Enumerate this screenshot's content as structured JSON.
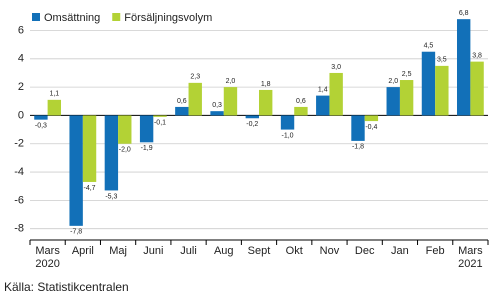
{
  "chart_data": {
    "type": "bar",
    "categories": [
      "Mars 2020",
      "April",
      "Maj",
      "Juni",
      "Juli",
      "Aug",
      "Sept",
      "Okt",
      "Nov",
      "Dec",
      "Jan",
      "Feb",
      "Mars 2021"
    ],
    "series": [
      {
        "name": "Omsättning",
        "color": "#1270b8",
        "values": [
          -0.3,
          -7.8,
          -5.3,
          -1.9,
          0.6,
          0.3,
          -0.2,
          -1.0,
          1.4,
          -1.8,
          2.0,
          4.5,
          6.8
        ],
        "value_labels": [
          "-0,3",
          "-7,8",
          "-5,3",
          "-1,9",
          "0,6",
          "0,3",
          "-0,2",
          "-1,0",
          "1,4",
          "-1,8",
          "2,0",
          "4,5",
          "6,8"
        ]
      },
      {
        "name": "Försäljningsvolym",
        "color": "#b3d235",
        "values": [
          1.1,
          -4.7,
          -2.0,
          -0.1,
          2.3,
          2.0,
          1.8,
          0.6,
          3.0,
          -0.4,
          2.5,
          3.5,
          3.8
        ],
        "value_labels": [
          "1,1",
          "-4,7",
          "-2,0",
          "-0,1",
          "2,3",
          "2,0",
          "1,8",
          "0,6",
          "3,0",
          "-0,4",
          "2,5",
          "3,5",
          "3,8"
        ]
      }
    ],
    "ylim": [
      -8.8,
      7.8
    ],
    "yticks": [
      -8,
      -6,
      -4,
      -2,
      0,
      2,
      4,
      6
    ],
    "grid": true,
    "legend": "top-left",
    "source": "Källa: Statistikcentralen"
  }
}
